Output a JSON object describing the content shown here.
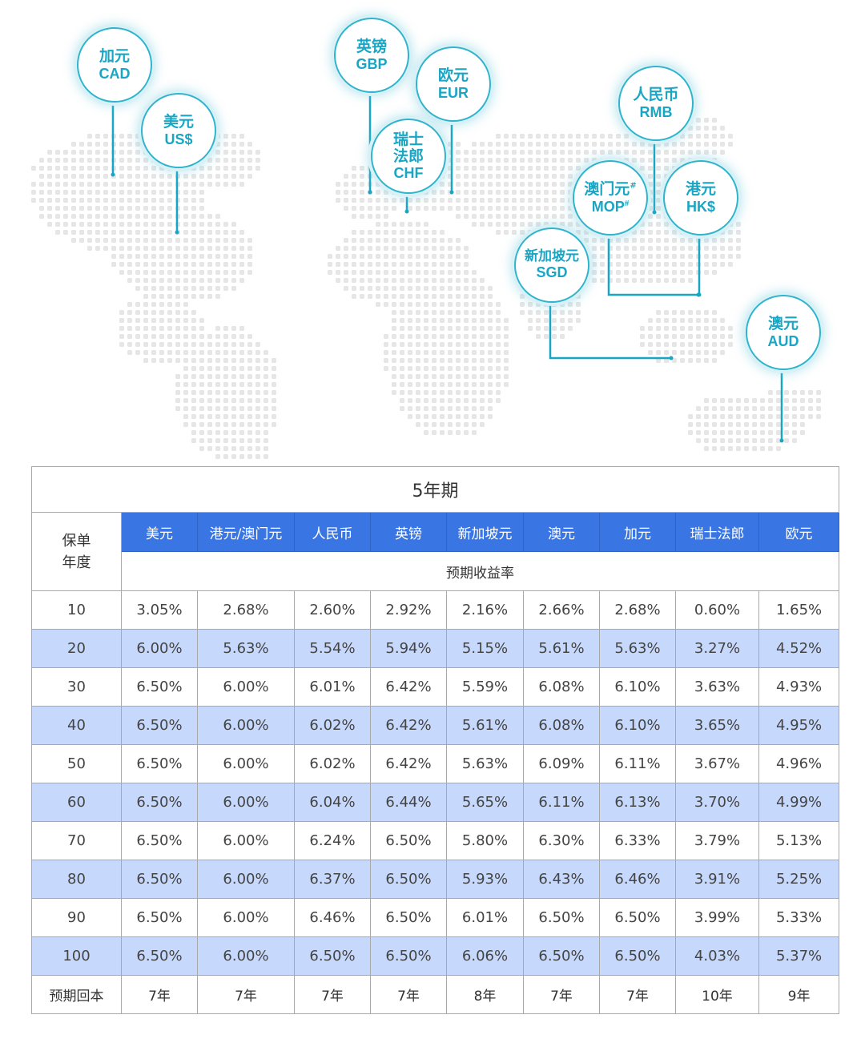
{
  "map": {
    "bubbles": [
      {
        "id": "cad",
        "cn": "加元",
        "en": "CAD"
      },
      {
        "id": "usd",
        "cn": "美元",
        "en": "US$"
      },
      {
        "id": "gbp",
        "cn": "英镑",
        "en": "GBP"
      },
      {
        "id": "eur",
        "cn": "欧元",
        "en": "EUR"
      },
      {
        "id": "chf",
        "cn_line1": "瑞士",
        "cn_line2": "法郎",
        "en": "CHF"
      },
      {
        "id": "rmb",
        "cn": "人民币",
        "en": "RMB"
      },
      {
        "id": "mop",
        "cn": "澳门元",
        "en": "MOP",
        "mark": "#"
      },
      {
        "id": "hkd",
        "cn": "港元",
        "en": "HK$"
      },
      {
        "id": "sgd",
        "cn": "新加坡元",
        "en": "SGD"
      },
      {
        "id": "aud",
        "cn": "澳元",
        "en": "AUD"
      }
    ],
    "colors": {
      "accent": "#19a6c4",
      "dots": "#e6e6e6"
    }
  },
  "table": {
    "title": "5年期",
    "year_header_line1": "保单",
    "year_header_line2": "年度",
    "currencies": [
      "美元",
      "港元/澳门元",
      "人民币",
      "英镑",
      "新加坡元",
      "澳元",
      "加元",
      "瑞士法郎",
      "欧元"
    ],
    "subheader": "预期收益率",
    "rows": [
      {
        "year": "10",
        "rates": [
          "3.05%",
          "2.68%",
          "2.60%",
          "2.92%",
          "2.16%",
          "2.66%",
          "2.68%",
          "0.60%",
          "1.65%"
        ]
      },
      {
        "year": "20",
        "rates": [
          "6.00%",
          "5.63%",
          "5.54%",
          "5.94%",
          "5.15%",
          "5.61%",
          "5.63%",
          "3.27%",
          "4.52%"
        ]
      },
      {
        "year": "30",
        "rates": [
          "6.50%",
          "6.00%",
          "6.01%",
          "6.42%",
          "5.59%",
          "6.08%",
          "6.10%",
          "3.63%",
          "4.93%"
        ]
      },
      {
        "year": "40",
        "rates": [
          "6.50%",
          "6.00%",
          "6.02%",
          "6.42%",
          "5.61%",
          "6.08%",
          "6.10%",
          "3.65%",
          "4.95%"
        ]
      },
      {
        "year": "50",
        "rates": [
          "6.50%",
          "6.00%",
          "6.02%",
          "6.42%",
          "5.63%",
          "6.09%",
          "6.11%",
          "3.67%",
          "4.96%"
        ]
      },
      {
        "year": "60",
        "rates": [
          "6.50%",
          "6.00%",
          "6.04%",
          "6.44%",
          "5.65%",
          "6.11%",
          "6.13%",
          "3.70%",
          "4.99%"
        ]
      },
      {
        "year": "70",
        "rates": [
          "6.50%",
          "6.00%",
          "6.24%",
          "6.50%",
          "5.80%",
          "6.30%",
          "6.33%",
          "3.79%",
          "5.13%"
        ]
      },
      {
        "year": "80",
        "rates": [
          "6.50%",
          "6.00%",
          "6.37%",
          "6.50%",
          "5.93%",
          "6.43%",
          "6.46%",
          "3.91%",
          "5.25%"
        ]
      },
      {
        "year": "90",
        "rates": [
          "6.50%",
          "6.00%",
          "6.46%",
          "6.50%",
          "6.01%",
          "6.50%",
          "6.50%",
          "3.99%",
          "5.33%"
        ]
      },
      {
        "year": "100",
        "rates": [
          "6.50%",
          "6.00%",
          "6.50%",
          "6.50%",
          "6.06%",
          "6.50%",
          "6.50%",
          "4.03%",
          "5.37%"
        ]
      }
    ],
    "payback_label": "预期回本",
    "payback": [
      "7年",
      "7年",
      "7年",
      "7年",
      "8年",
      "7年",
      "7年",
      "10年",
      "9年"
    ],
    "colors": {
      "header_bg": "#3a76e3",
      "alt_row_bg": "#c6d8fb"
    }
  }
}
